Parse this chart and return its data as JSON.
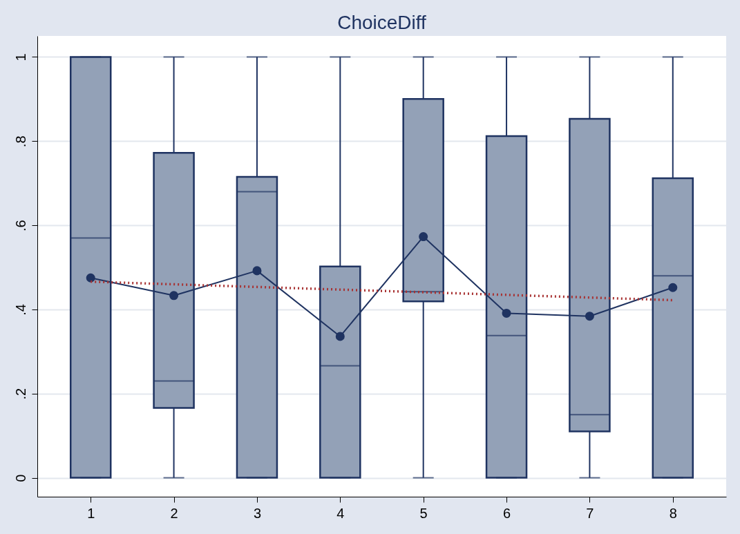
{
  "chart_data": {
    "type": "box",
    "title": "ChoiceDiff",
    "color": "#93a1b7",
    "categories": [
      "1",
      "2",
      "3",
      "4",
      "5",
      "6",
      "7",
      "8"
    ],
    "boxes": [
      {
        "low": 0,
        "q1": 0,
        "median": 0.57,
        "q3": 1,
        "high": 1
      },
      {
        "low": 0,
        "q1": 0.166,
        "median": 0.23,
        "q3": 0.772,
        "high": 1
      },
      {
        "low": 0,
        "q1": 0,
        "median": 0.68,
        "q3": 0.715,
        "high": 1
      },
      {
        "low": 0,
        "q1": 0,
        "median": 0.266,
        "q3": 0.502,
        "high": 1
      },
      {
        "low": 0,
        "q1": 0.419,
        "median": 0.442,
        "q3": 0.9,
        "high": 1
      },
      {
        "low": 0,
        "q1": 0,
        "median": 0.338,
        "q3": 0.812,
        "high": 1
      },
      {
        "low": 0,
        "q1": 0.11,
        "median": 0.15,
        "q3": 0.853,
        "high": 1
      },
      {
        "low": 0,
        "q1": 0,
        "median": 0.48,
        "q3": 0.712,
        "high": 1
      }
    ],
    "series": [
      {
        "type": "line",
        "color": "#1f3361",
        "marker": "circle",
        "line_style": "solid",
        "values": [
          0.475,
          0.433,
          0.492,
          0.336,
          0.573,
          0.391,
          0.384,
          0.452
        ]
      },
      {
        "type": "line",
        "color": "#a83232",
        "marker": "none",
        "line_style": "dotted",
        "x": [
          "1",
          "8"
        ],
        "values": [
          0.466,
          0.422
        ]
      }
    ],
    "ylim": [
      -0.045,
      1.05
    ],
    "yticks": [
      0,
      {
        "value": 0.2,
        "label": ".2"
      },
      {
        "value": 0.4,
        "label": ".4"
      },
      {
        "value": 0.6,
        "label": ".6"
      },
      {
        "value": 0.8,
        "label": ".8"
      },
      1
    ],
    "grid": "y"
  }
}
